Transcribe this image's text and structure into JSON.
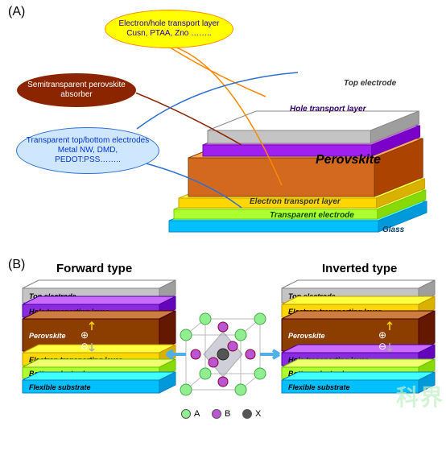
{
  "panelA": {
    "label": "(A)",
    "callouts": {
      "transport": {
        "line1": "Electron/hole transport layer",
        "line2": "Cusn, PTAA, Zno ……..",
        "bg": "#ffff00",
        "color": "#2200aa",
        "border": "#ff8800"
      },
      "absorber": {
        "line1": "Semitransparent perovskite",
        "line2": "absorber",
        "bg": "#8b2500",
        "color": "#ffffff",
        "border": "#ffffff"
      },
      "electrodes": {
        "line1": "Transparent top/bottom electrodes",
        "line2": "Metal NW, DMD,",
        "line3": "PEDOT:PSS……..",
        "bg": "#cfe6ff",
        "color": "#0033cc",
        "border": "#3070d0"
      }
    },
    "layers": [
      {
        "name": "top-electrode",
        "label": "Top electrode",
        "fill": "#c4c4c4",
        "stroke": "#888"
      },
      {
        "name": "hole-transport",
        "label": "Hole transport layer",
        "fill": "#a020f0",
        "stroke": "#6a0dad"
      },
      {
        "name": "perovskite",
        "label": "Perovskite",
        "fill": "#d2691e",
        "stroke": "#8b3e00"
      },
      {
        "name": "electron-transport",
        "label": "Electron transport layer",
        "fill": "#ffd700",
        "stroke": "#cca300"
      },
      {
        "name": "transparent-electrode",
        "label": "Transparent electrode",
        "fill": "#adff2f",
        "stroke": "#7acc00"
      },
      {
        "name": "glass",
        "label": "Glass",
        "fill": "#00bfff",
        "stroke": "#0088cc"
      }
    ]
  },
  "panelB": {
    "label": "(B)",
    "forward": {
      "title": "Forward type",
      "layers": [
        {
          "name": "top-electrode",
          "label": "Top  electrode",
          "fill": "#c4c4c4"
        },
        {
          "name": "hole-transporting",
          "label": "Hole transporting layer",
          "fill": "#8a2be2"
        },
        {
          "name": "perovskite",
          "label": "Perovskite",
          "fill": "#8b3e00"
        },
        {
          "name": "electron-transporting",
          "label": "Electron transporting layer",
          "fill": "#ffd700"
        },
        {
          "name": "bottom-electrode",
          "label": "Bottom electrode",
          "fill": "#adff2f"
        },
        {
          "name": "flexible-substrate",
          "label": "Flexible  substrate",
          "fill": "#00bfff"
        }
      ]
    },
    "inverted": {
      "title": "Inverted type",
      "layers": [
        {
          "name": "top-electrode",
          "label": "Top  electrode",
          "fill": "#c4c4c4"
        },
        {
          "name": "electron-transporting",
          "label": "Electron transporting layer",
          "fill": "#ffd700"
        },
        {
          "name": "perovskite",
          "label": "Perovskite",
          "fill": "#8b3e00"
        },
        {
          "name": "hole-transporting",
          "label": "Hole transporting layer",
          "fill": "#8a2be2"
        },
        {
          "name": "bottom-electrode",
          "label": "Bottom electrode",
          "fill": "#adff2f"
        },
        {
          "name": "flexible-substrate",
          "label": "Flexible  substrate",
          "fill": "#00bfff"
        }
      ]
    },
    "crystal": {
      "A": {
        "label": "A",
        "color": "#90ee90"
      },
      "B": {
        "label": "B",
        "color": "#ba55d3"
      },
      "X": {
        "label": "X",
        "color": "#555555"
      }
    }
  },
  "watermark": "科界"
}
